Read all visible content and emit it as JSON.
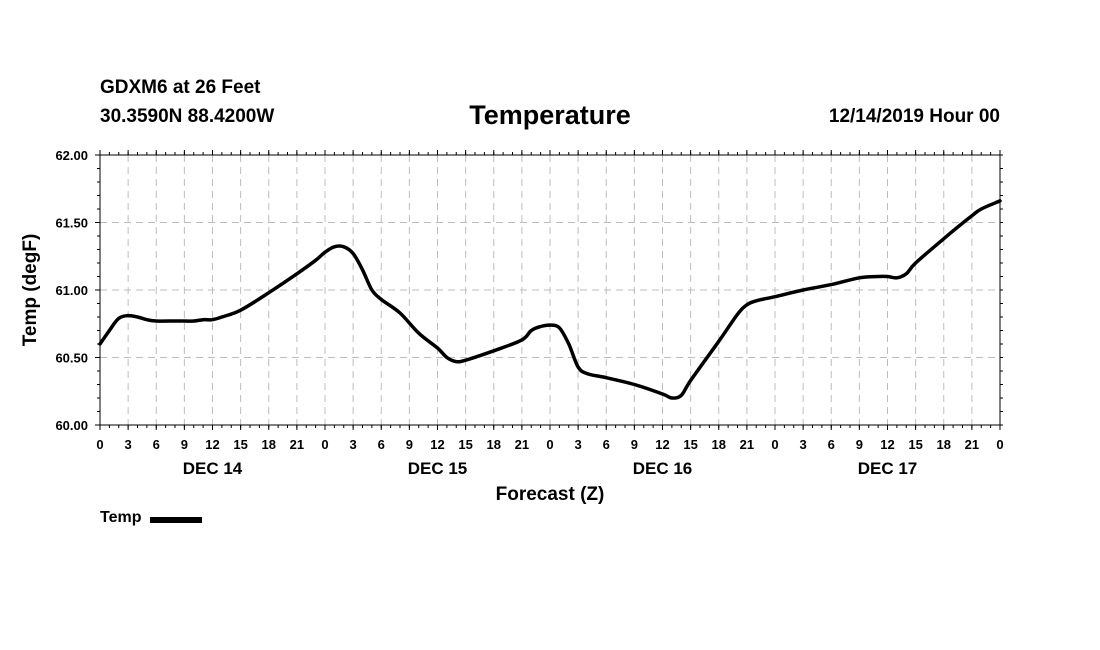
{
  "header": {
    "station": "GDXM6 at 26 Feet",
    "coordinates": "30.3590N 88.4200W",
    "title": "Temperature",
    "datetime": "12/14/2019 Hour 00"
  },
  "legend": {
    "label": "Temp",
    "color": "#000000"
  },
  "chart_data": {
    "type": "line",
    "title": "Temperature",
    "xlabel": "Forecast (Z)",
    "ylabel": "Temp (degF)",
    "ylim": [
      60.0,
      62.0
    ],
    "xlim_hours": [
      0,
      96
    ],
    "yticks": [
      "60.00",
      "60.50",
      "61.00",
      "61.50",
      "62.00"
    ],
    "xticks": [
      "0",
      "3",
      "6",
      "9",
      "12",
      "15",
      "18",
      "21",
      "0",
      "3",
      "6",
      "9",
      "12",
      "15",
      "18",
      "21",
      "0",
      "3",
      "6",
      "9",
      "12",
      "15",
      "18",
      "21",
      "0",
      "3",
      "6",
      "9",
      "12",
      "15",
      "18",
      "21",
      "0"
    ],
    "day_labels": [
      {
        "label": "DEC 14",
        "hour": 12
      },
      {
        "label": "DEC 15",
        "hour": 36
      },
      {
        "label": "DEC 16",
        "hour": 60
      },
      {
        "label": "DEC 17",
        "hour": 84
      }
    ],
    "grid": true,
    "series": [
      {
        "name": "Temp",
        "color": "#000000",
        "points": [
          [
            0,
            60.6
          ],
          [
            1,
            60.7
          ],
          [
            2,
            60.79
          ],
          [
            3,
            60.81
          ],
          [
            4,
            60.8
          ],
          [
            5,
            60.78
          ],
          [
            6,
            60.77
          ],
          [
            8,
            60.77
          ],
          [
            9,
            60.77
          ],
          [
            10,
            60.77
          ],
          [
            11,
            60.78
          ],
          [
            12,
            60.78
          ],
          [
            13,
            60.8
          ],
          [
            15,
            60.85
          ],
          [
            18,
            60.98
          ],
          [
            21,
            61.12
          ],
          [
            23,
            61.22
          ],
          [
            24,
            61.28
          ],
          [
            25,
            61.32
          ],
          [
            26,
            61.32
          ],
          [
            27,
            61.27
          ],
          [
            28,
            61.15
          ],
          [
            29,
            61.0
          ],
          [
            30,
            60.93
          ],
          [
            32,
            60.83
          ],
          [
            34,
            60.68
          ],
          [
            36,
            60.57
          ],
          [
            37,
            60.5
          ],
          [
            38,
            60.47
          ],
          [
            39,
            60.48
          ],
          [
            42,
            60.55
          ],
          [
            45,
            60.63
          ],
          [
            46,
            60.7
          ],
          [
            47,
            60.73
          ],
          [
            48,
            60.74
          ],
          [
            49,
            60.72
          ],
          [
            50,
            60.6
          ],
          [
            51,
            60.43
          ],
          [
            52,
            60.38
          ],
          [
            54,
            60.35
          ],
          [
            57,
            60.3
          ],
          [
            60,
            60.23
          ],
          [
            61,
            60.2
          ],
          [
            62,
            60.22
          ],
          [
            63,
            60.33
          ],
          [
            66,
            60.62
          ],
          [
            68,
            60.82
          ],
          [
            69,
            60.89
          ],
          [
            70,
            60.92
          ],
          [
            72,
            60.95
          ],
          [
            75,
            61.0
          ],
          [
            78,
            61.04
          ],
          [
            81,
            61.09
          ],
          [
            83,
            61.1
          ],
          [
            84,
            61.1
          ],
          [
            85,
            61.09
          ],
          [
            86,
            61.12
          ],
          [
            87,
            61.2
          ],
          [
            90,
            61.38
          ],
          [
            93,
            61.55
          ],
          [
            94,
            61.6
          ],
          [
            96,
            61.66
          ]
        ]
      }
    ]
  }
}
